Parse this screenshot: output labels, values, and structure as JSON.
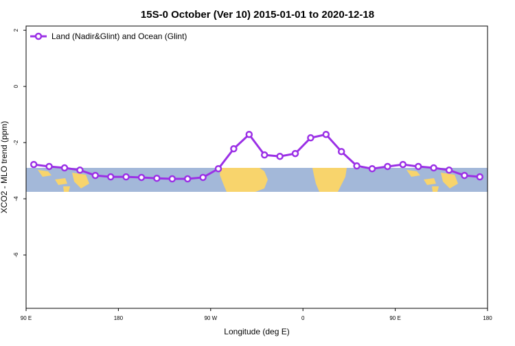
{
  "chart_data": {
    "type": "line",
    "title": "15S-0 October (Ver 10)   2015-01-01 to 2020-12-18",
    "x_label": "Longitude (deg E)",
    "y_label": "XCO2 - MLO trend (ppm)",
    "x": [
      97.5,
      112.5,
      127.5,
      142.5,
      157.5,
      172.5,
      187.5,
      202.5,
      217.5,
      232.5,
      247.5,
      262.5,
      277.5,
      292.5,
      307.5,
      322.5,
      337.5,
      352.5,
      367.5,
      382.5,
      397.5,
      412.5,
      427.5,
      442.5,
      457.5,
      472.5,
      487.5,
      502.5,
      517.5,
      532.5
    ],
    "series": [
      {
        "name": "Land (Nadir&Glint) and Ocean (Glint)",
        "color": "#9b30e6",
        "values": [
          -2.78,
          -2.85,
          -2.9,
          -2.98,
          -3.17,
          -3.22,
          -3.22,
          -3.24,
          -3.27,
          -3.29,
          -3.29,
          -3.24,
          -2.93,
          -2.22,
          -1.71,
          -2.44,
          -2.49,
          -2.39,
          -1.83,
          -1.71,
          -2.32,
          -2.83,
          -2.93,
          -2.85,
          -2.78,
          -2.85,
          -2.9,
          -2.98,
          -3.17,
          -3.22
        ]
      }
    ],
    "xlim": [
      90,
      540
    ],
    "ylim": [
      -7.9,
      2.15
    ],
    "xticks": [
      {
        "value": 90,
        "label": "90 E"
      },
      {
        "value": 180,
        "label": "180"
      },
      {
        "value": 270,
        "label": "90 W"
      },
      {
        "value": 360,
        "label": "0"
      },
      {
        "value": 450,
        "label": "90 E"
      },
      {
        "value": 540,
        "label": "180"
      }
    ],
    "yticks": [
      -6,
      -4,
      -2,
      0,
      2
    ],
    "legend": "upper left"
  }
}
